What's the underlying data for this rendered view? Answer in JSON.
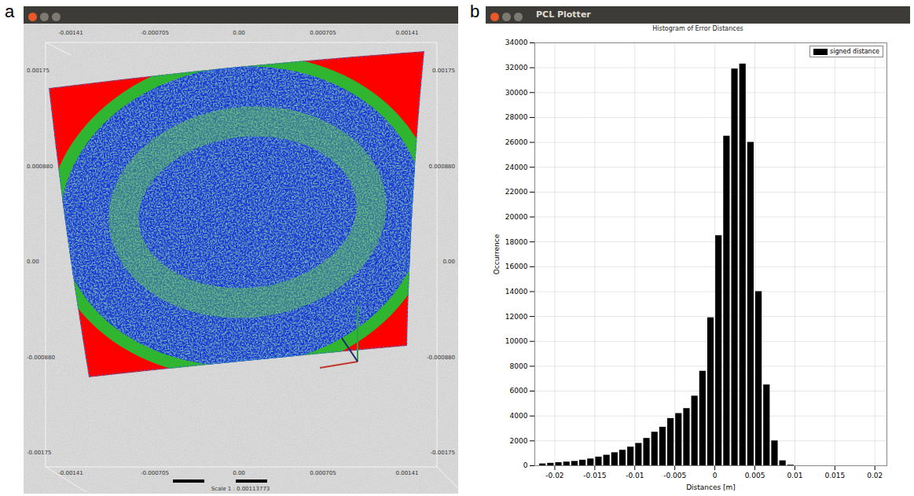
{
  "screenshot": {
    "panel_label": "a",
    "top_ticks": [
      "-0.00141",
      "-0.000705",
      "0.00",
      "0.000705",
      "0.00141"
    ],
    "bottom_ticks": [
      "-0.00141",
      "-0.000705",
      "0.00",
      "0.000705",
      "0.00141"
    ],
    "left_ticks": [
      "0.00175",
      "0.000880",
      "0.00",
      "-0.000880",
      "-0.00175"
    ],
    "right_ticks": [
      "0.00175",
      "0.000880",
      "0.00",
      "-0.000880",
      "-0.00175"
    ],
    "scale_text": "Scale 1 : 0.00113773"
  },
  "chart_data": {
    "type": "histogram",
    "panel_label": "b",
    "window_title": "PCL Plotter",
    "title": "Histogram of Error Distances",
    "xlabel": "Distances [m]",
    "ylabel": "Occurrence",
    "bins": [
      -0.022,
      -0.021,
      -0.02,
      -0.019,
      -0.018,
      -0.017,
      -0.016,
      -0.015,
      -0.014,
      -0.013,
      -0.012,
      -0.011,
      -0.01,
      -0.009,
      -0.008,
      -0.007,
      -0.006,
      -0.005,
      -0.004,
      -0.003,
      -0.002,
      -0.001,
      0,
      0.001,
      0.002,
      0.003,
      0.004,
      0.005,
      0.006,
      0.007,
      0.008,
      0.009,
      0.01
    ],
    "series": [
      {
        "name": "signed distance",
        "color": "#000000",
        "values": [
          150,
          200,
          250,
          300,
          350,
          450,
          550,
          700,
          850,
          1050,
          1250,
          1500,
          1800,
          2200,
          2700,
          3100,
          3800,
          4200,
          4600,
          5600,
          7600,
          11900,
          18500,
          26500,
          31900,
          32300,
          26000,
          14000,
          6500,
          2000,
          400,
          50
        ]
      }
    ],
    "xlim": [
      -0.0225,
      0.0215
    ],
    "xticks": [
      -0.02,
      -0.015,
      -0.01,
      -0.005,
      0,
      0.005,
      0.01,
      0.015,
      0.02
    ],
    "ylim": [
      0,
      34000
    ],
    "yticks": [
      0,
      2000,
      4000,
      6000,
      8000,
      10000,
      12000,
      14000,
      16000,
      18000,
      20000,
      22000,
      24000,
      26000,
      28000,
      30000,
      32000,
      34000
    ],
    "grid": true,
    "legend": "top-right"
  }
}
